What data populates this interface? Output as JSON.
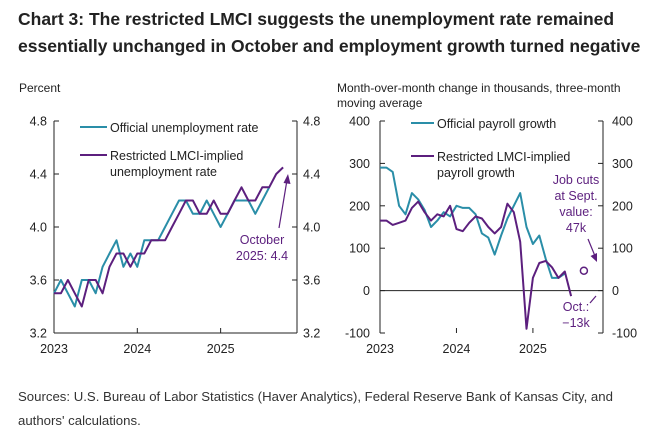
{
  "title_lines": [
    "Chart 3: The restricted LMCI suggests the unemployment rate remained",
    "essentially unchanged in October and employment growth turned negative"
  ],
  "sources_lines": [
    "Sources: U.S. Bureau of Labor Statistics (Haver Analytics), Federal Reserve Bank of Kansas City, and",
    "authors' calculations."
  ],
  "colors": {
    "official": "#2a8ea8",
    "restricted": "#5c1f7e",
    "axis": "#222222"
  },
  "chart_data": [
    {
      "type": "line",
      "ylabel": "Percent",
      "ylim": [
        3.2,
        4.8
      ],
      "yticks": [
        "4.8",
        "4.4",
        "4.0",
        "3.6",
        "3.2"
      ],
      "ytick_values": [
        4.8,
        4.4,
        4.0,
        3.6,
        3.2
      ],
      "xlim": [
        2023.0,
        2025.9167
      ],
      "xticks": [
        "2023",
        "2024",
        "2025"
      ],
      "xtick_values": [
        2023,
        2024,
        2025
      ],
      "legend": [
        "Official unemployment rate",
        "Restricted LMCI-implied",
        "unemployment rate"
      ],
      "annotation": [
        "October",
        "2025: 4.4"
      ],
      "series": [
        {
          "name": "Official unemployment rate",
          "color_key": "official",
          "x_start": 2023.0,
          "values": [
            3.5,
            3.6,
            3.5,
            3.4,
            3.6,
            3.6,
            3.5,
            3.7,
            3.8,
            3.9,
            3.7,
            3.8,
            3.7,
            3.9,
            3.9,
            3.9,
            4.0,
            4.1,
            4.2,
            4.2,
            4.1,
            4.1,
            4.2,
            4.1,
            4.0,
            4.1,
            4.2,
            4.2,
            4.2,
            4.1,
            4.2,
            4.3
          ]
        },
        {
          "name": "Restricted LMCI-implied unemployment rate",
          "color_key": "restricted",
          "x_start": 2023.0,
          "values": [
            3.5,
            3.5,
            3.6,
            3.5,
            3.4,
            3.6,
            3.6,
            3.5,
            3.7,
            3.8,
            3.8,
            3.7,
            3.8,
            3.8,
            3.9,
            3.9,
            3.9,
            4.0,
            4.1,
            4.2,
            4.2,
            4.1,
            4.1,
            4.2,
            4.1,
            4.1,
            4.2,
            4.3,
            4.2,
            4.2,
            4.3,
            4.3,
            4.4,
            4.45
          ]
        }
      ]
    },
    {
      "type": "line",
      "ylabel": "Month-over-month change in thousands, three-month moving average",
      "ylabel_lines": [
        "Month-over-month change in thousands, three-month",
        "moving average"
      ],
      "ylim": [
        -100,
        400
      ],
      "yticks": [
        "400",
        "300",
        "200",
        "100",
        "0",
        "-100"
      ],
      "ytick_values": [
        400,
        300,
        200,
        100,
        0,
        -100
      ],
      "xlim": [
        2023.0,
        2025.9167
      ],
      "xticks": [
        "2023",
        "2024",
        "2025"
      ],
      "xtick_values": [
        2023,
        2024,
        2025
      ],
      "legend": [
        "Official payroll growth",
        "Restricted LMCI-implied",
        "payroll growth"
      ],
      "annotation_sept": [
        "Job cuts",
        "at Sept.",
        "value:",
        "47k"
      ],
      "annotation_oct": [
        "Oct.:",
        "−13k"
      ],
      "highlight_point": {
        "x": 2025.6667,
        "y": 47
      },
      "series": [
        {
          "name": "Official payroll growth",
          "color_key": "official",
          "x_start": 2023.0,
          "values": [
            290,
            290,
            280,
            200,
            180,
            230,
            215,
            190,
            150,
            165,
            185,
            175,
            200,
            195,
            195,
            180,
            135,
            125,
            85,
            130,
            170,
            200,
            230,
            150,
            110,
            130,
            75,
            30,
            30,
            40
          ]
        },
        {
          "name": "Restricted LMCI-implied payroll growth",
          "color_key": "restricted",
          "x_start": 2023.0,
          "values": [
            165,
            165,
            155,
            160,
            165,
            195,
            210,
            185,
            165,
            180,
            175,
            200,
            145,
            140,
            160,
            175,
            170,
            150,
            135,
            150,
            205,
            185,
            115,
            -90,
            30,
            65,
            70,
            55,
            30,
            45,
            -13
          ]
        }
      ]
    }
  ]
}
